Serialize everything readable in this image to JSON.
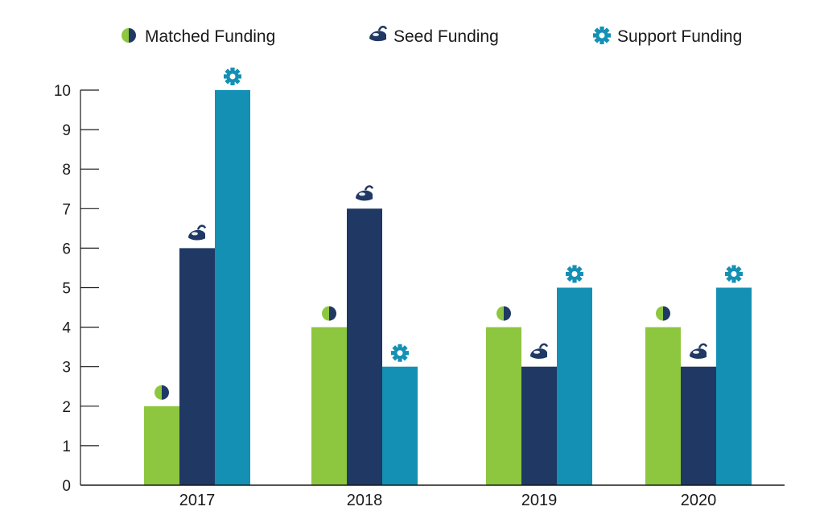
{
  "chart_data": {
    "type": "bar",
    "categories": [
      "2017",
      "2018",
      "2019",
      "2020"
    ],
    "series": [
      {
        "name": "Matched Funding",
        "values": [
          2,
          4,
          4,
          4
        ],
        "color": "#8dc63f",
        "icon": "half-circle-icon"
      },
      {
        "name": "Seed Funding",
        "values": [
          6,
          7,
          3,
          3
        ],
        "color": "#1f3864",
        "icon": "seed-pot-icon"
      },
      {
        "name": "Support Funding",
        "values": [
          10,
          3,
          5,
          5
        ],
        "color": "#1590b5",
        "icon": "gear-icon"
      }
    ],
    "yticks": [
      "0",
      "1",
      "2",
      "3",
      "4",
      "5",
      "6",
      "7",
      "8",
      "9",
      "10"
    ],
    "ylim": [
      0,
      10
    ],
    "title": "",
    "xlabel": "",
    "ylabel": "",
    "grid": false,
    "legend_position": "top"
  }
}
